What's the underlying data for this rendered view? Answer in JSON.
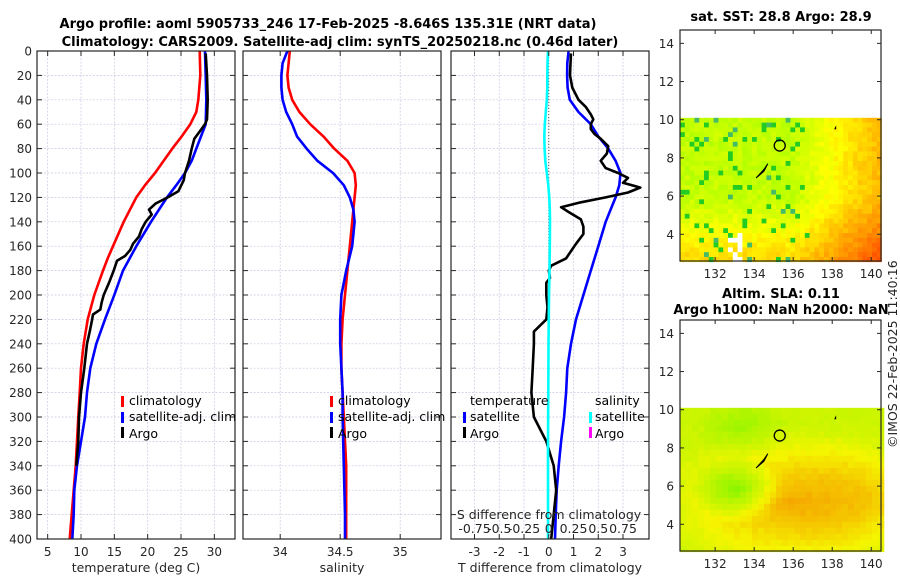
{
  "titles": {
    "line1": "Argo profile: aoml 5905733_246 17-Feb-2025 -8.646S 135.31E (NRT data)",
    "line2": "Climatology: CARS2009. Satellite-adj clim: synTS_20250218.nc (0.46d later)",
    "map_sst": "sat. SST: 28.8 Argo: 28.9",
    "map_sla_1": "Altim. SLA: 0.11",
    "map_sla_2": "Argo h1000: NaN h2000: NaN",
    "copyright": "©IMOS 22-Feb-2025 11:40:16"
  },
  "colors": {
    "climatology": "#ff0000",
    "satellite": "#0000ff",
    "argo": "#000000",
    "sal_satellite": "#00ffff",
    "sal_argo": "#ff00ff"
  },
  "chart_data": [
    {
      "type": "line",
      "name": "temperature-profile",
      "xlabel": "temperature (deg C)",
      "ylabel": "",
      "xlim": [
        3.4,
        33.1
      ],
      "ylim": [
        400,
        0
      ],
      "xticks": [
        5,
        10,
        15,
        20,
        25,
        30
      ],
      "yticks": [
        0,
        20,
        40,
        60,
        80,
        100,
        120,
        140,
        160,
        180,
        200,
        220,
        240,
        260,
        280,
        300,
        320,
        340,
        360,
        380,
        400
      ],
      "grid": true,
      "legend": {
        "placement": "lower-right",
        "entries": [
          "climatology",
          "satellite-adj. clim",
          "Argo"
        ]
      },
      "series": [
        {
          "name": "climatology",
          "depth": [
            0,
            20,
            40,
            50,
            60,
            70,
            80,
            100,
            110,
            120,
            140,
            160,
            170,
            180,
            200,
            220,
            240,
            260,
            280,
            300,
            340,
            380,
            400
          ],
          "values": [
            27.8,
            27.9,
            27.6,
            27.3,
            26.4,
            25.1,
            23.7,
            21.1,
            19.6,
            18.3,
            16.4,
            14.8,
            14.0,
            13.3,
            12.0,
            11.0,
            10.4,
            10.0,
            9.8,
            9.6,
            9.2,
            8.6,
            8.3
          ]
        },
        {
          "name": "satellite-adj. clim",
          "depth": [
            0,
            20,
            40,
            60,
            70,
            80,
            90,
            100,
            110,
            120,
            140,
            160,
            180,
            200,
            220,
            240,
            260,
            280,
            300,
            320,
            340,
            360,
            380,
            400
          ],
          "values": [
            28.6,
            28.7,
            28.8,
            28.7,
            28.0,
            27.3,
            26.6,
            25.6,
            24.3,
            22.9,
            20.5,
            18.3,
            16.3,
            15.0,
            13.6,
            12.3,
            11.4,
            10.9,
            10.6,
            10.0,
            9.4,
            9.0,
            8.9,
            8.7
          ]
        },
        {
          "name": "Argo",
          "depth": [
            2,
            20,
            40,
            56,
            60,
            66,
            72,
            80,
            90,
            100,
            106,
            115,
            120,
            125,
            130,
            134,
            140,
            146,
            152,
            158,
            163,
            168,
            172,
            180,
            190,
            200,
            206,
            212,
            216,
            222,
            230,
            240,
            260,
            280,
            300,
            320,
            340
          ],
          "values": [
            28.7,
            28.9,
            29.0,
            28.9,
            28.6,
            27.8,
            27.0,
            26.6,
            26.2,
            25.6,
            25.4,
            24.6,
            23.0,
            21.2,
            20.2,
            20.6,
            19.7,
            19.1,
            18.7,
            17.8,
            17.4,
            16.6,
            15.4,
            14.9,
            14.2,
            13.4,
            13.1,
            12.9,
            11.8,
            11.6,
            11.3,
            10.9,
            10.5,
            10.0,
            9.7,
            9.6,
            9.3
          ]
        }
      ]
    },
    {
      "type": "line",
      "name": "salinity-profile",
      "xlabel": "salinity",
      "xlim": [
        33.69,
        35.34
      ],
      "ylim": [
        400,
        0
      ],
      "xticks": [
        34,
        34.5,
        35
      ],
      "grid": true,
      "legend": {
        "placement": "lower-right",
        "entries": [
          "climatology",
          "satellite-adj. clim",
          "Argo"
        ]
      },
      "series": [
        {
          "name": "climatology",
          "depth": [
            0,
            10,
            20,
            30,
            40,
            50,
            60,
            70,
            80,
            90,
            100,
            110,
            120,
            130,
            140,
            160,
            180,
            200,
            220,
            240,
            260,
            280,
            300,
            340,
            380,
            400
          ],
          "values": [
            34.08,
            34.07,
            34.06,
            34.07,
            34.1,
            34.16,
            34.25,
            34.36,
            34.45,
            34.56,
            34.62,
            34.63,
            34.62,
            34.61,
            34.6,
            34.58,
            34.56,
            34.54,
            34.52,
            34.51,
            34.51,
            34.52,
            34.53,
            34.55,
            34.55,
            34.55
          ]
        },
        {
          "name": "satellite-adj. clim",
          "depth": [
            0,
            10,
            20,
            30,
            40,
            50,
            60,
            70,
            80,
            90,
            100,
            110,
            120,
            130,
            140,
            160,
            180,
            200,
            220,
            240,
            260,
            280,
            300,
            340,
            380,
            400
          ],
          "values": [
            34.06,
            34.02,
            34.01,
            34.01,
            34.02,
            34.05,
            34.1,
            34.14,
            34.22,
            34.31,
            34.44,
            34.53,
            34.58,
            34.61,
            34.62,
            34.6,
            34.55,
            34.51,
            34.5,
            34.5,
            34.51,
            34.52,
            34.52,
            34.53,
            34.54,
            34.54
          ]
        }
      ]
    },
    {
      "type": "line",
      "name": "difference-profile",
      "xlabel": "T difference from climatology",
      "xlabel_top": "S difference from climatology",
      "xlim": [
        -3.95,
        4.05
      ],
      "ylim": [
        400,
        0
      ],
      "xticks": [
        -3,
        -2,
        -1,
        0,
        1,
        2,
        3
      ],
      "xticks_salinity": [
        "-0.75",
        "-0.5",
        "-0.25",
        "0",
        "0.25",
        "0.5",
        "0.75"
      ],
      "s_scale_factor": 4,
      "grid": true,
      "legend": {
        "placement": "lower",
        "temperature": [
          "satellite",
          "Argo"
        ],
        "salinity": [
          "satellite",
          "Argo"
        ]
      },
      "series": [
        {
          "name": "temperature satellite",
          "depth": [
            0,
            10,
            20,
            30,
            40,
            50,
            60,
            70,
            80,
            90,
            100,
            110,
            120,
            130,
            140,
            160,
            180,
            200,
            220,
            240,
            260,
            280,
            300,
            320,
            340,
            360,
            380,
            400
          ],
          "values": [
            0.8,
            0.75,
            0.74,
            0.76,
            0.85,
            1.2,
            1.7,
            2.0,
            2.4,
            2.7,
            2.9,
            2.85,
            2.7,
            2.5,
            2.3,
            2.0,
            1.7,
            1.4,
            1.1,
            0.9,
            0.75,
            0.7,
            0.62,
            0.5,
            0.4,
            0.32,
            0.28,
            0.25
          ]
        },
        {
          "name": "temperature Argo",
          "depth": [
            2,
            10,
            20,
            30,
            40,
            46,
            52,
            56,
            60,
            64,
            68,
            72,
            78,
            84,
            90,
            96,
            100,
            104,
            108,
            112,
            116,
            120,
            124,
            128,
            132,
            138,
            144,
            150,
            158,
            164,
            170,
            176,
            180,
            186,
            190,
            200,
            210,
            220,
            230,
            240,
            260,
            280,
            300,
            320,
            340,
            360,
            380,
            400
          ],
          "values": [
            0.9,
            0.88,
            0.86,
            0.95,
            1.2,
            1.5,
            1.7,
            1.8,
            1.7,
            1.7,
            1.85,
            2.1,
            2.4,
            2.35,
            2.1,
            2.3,
            2.8,
            3.2,
            3.0,
            3.7,
            3.2,
            2.3,
            1.3,
            0.5,
            0.8,
            1.3,
            1.4,
            1.4,
            1.1,
            0.9,
            0.7,
            0.1,
            0.0,
            0.05,
            -0.1,
            -0.1,
            -0.05,
            -0.1,
            -0.6,
            -0.6,
            -0.65,
            -0.7,
            -0.6,
            -0.1,
            0.2,
            0.3,
            0.2,
            0.1
          ]
        },
        {
          "name": "salinity satellite",
          "depth": [
            0,
            10,
            20,
            30,
            40,
            50,
            60,
            70,
            80,
            90,
            100,
            110,
            120,
            130,
            140,
            160,
            180,
            200,
            240,
            280,
            320,
            360,
            400
          ],
          "values": [
            -0.03,
            -0.05,
            -0.06,
            -0.06,
            -0.08,
            -0.12,
            -0.16,
            -0.18,
            -0.17,
            -0.14,
            -0.08,
            -0.02,
            0.02,
            0.04,
            0.05,
            0.04,
            0.03,
            0.01,
            -0.01,
            -0.02,
            -0.03,
            -0.03,
            -0.03
          ]
        }
      ]
    },
    {
      "type": "heatmap",
      "name": "sst-map",
      "title": "sat. SST: 28.8 Argo: 28.9",
      "xticks": [
        132,
        134,
        136,
        138,
        140
      ],
      "yticks": [
        4,
        6,
        8,
        10,
        12,
        14
      ],
      "xlim": [
        130.2,
        140.5
      ],
      "ylim": [
        2.6,
        14.7
      ],
      "data_extent_lat": [
        2.6,
        10.1
      ],
      "argo_position": {
        "lon": 135.31,
        "lat": 8.646
      }
    },
    {
      "type": "heatmap",
      "name": "sla-map",
      "title": "Altim. SLA: 0.11 / Argo h1000: NaN h2000: NaN",
      "xticks": [
        132,
        134,
        136,
        138,
        140
      ],
      "yticks": [
        4,
        6,
        8,
        10,
        12,
        14
      ],
      "xlim": [
        130.2,
        140.5
      ],
      "ylim": [
        2.6,
        14.7
      ],
      "data_extent_lat": [
        2.6,
        10.1
      ],
      "argo_position": {
        "lon": 135.31,
        "lat": 8.646
      }
    }
  ]
}
